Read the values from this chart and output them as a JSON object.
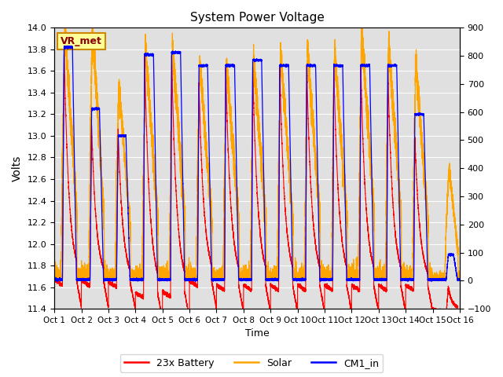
{
  "title": "System Power Voltage",
  "xlabel": "Time",
  "ylabel_left": "Volts",
  "ylim_left": [
    11.4,
    14.0
  ],
  "ylim_right": [
    -100,
    900
  ],
  "yticks_left": [
    11.4,
    11.6,
    11.8,
    12.0,
    12.2,
    12.4,
    12.6,
    12.8,
    13.0,
    13.2,
    13.4,
    13.6,
    13.8,
    14.0
  ],
  "yticks_right": [
    -100,
    0,
    100,
    200,
    300,
    400,
    500,
    600,
    700,
    800,
    900
  ],
  "xtick_labels": [
    "Oct 1",
    "Oct 2",
    "Oct 3",
    "Oct 4",
    "Oct 5",
    "Oct 6",
    "Oct 7",
    "Oct 8",
    "Oct 9",
    "Oct 10",
    "Oct 11",
    "Oct 12",
    "Oct 13",
    "Oct 14",
    "Oct 15",
    "Oct 16"
  ],
  "n_days": 15,
  "bg_color": "#e0e0e0",
  "legend_labels": [
    "23x Battery",
    "Solar",
    "CM1_in"
  ],
  "vr_met_label": "VR_met",
  "vr_met_bg": "#ffff99",
  "vr_met_border": "#cc8800",
  "figsize": [
    6.4,
    4.8
  ],
  "dpi": 100,
  "bat_peaks": [
    13.82,
    13.1,
    13.07,
    13.75,
    13.75,
    13.5,
    13.65,
    13.65,
    13.65,
    13.65,
    13.65,
    13.65,
    13.65,
    13.0,
    11.6
  ],
  "cm1_peaks": [
    13.82,
    13.25,
    13.0,
    13.75,
    13.77,
    13.65,
    13.65,
    13.7,
    13.65,
    13.65,
    13.65,
    13.65,
    13.65,
    13.2,
    11.9
  ],
  "sol_peaks": [
    900,
    900,
    700,
    830,
    830,
    780,
    780,
    790,
    820,
    820,
    820,
    900,
    850,
    780,
    400
  ],
  "bat_bases": [
    11.67,
    11.66,
    11.65,
    11.55,
    11.56,
    11.66,
    11.62,
    11.62,
    11.62,
    11.62,
    11.62,
    11.62,
    11.62,
    11.62,
    11.4
  ],
  "charge_starts": [
    0.3,
    0.32,
    0.3,
    0.3,
    0.3,
    0.3,
    0.3,
    0.3,
    0.3,
    0.3,
    0.3,
    0.3,
    0.3,
    0.3,
    0.5
  ],
  "charge_ends": [
    0.36,
    0.38,
    0.36,
    0.34,
    0.34,
    0.35,
    0.34,
    0.34,
    0.34,
    0.34,
    0.34,
    0.34,
    0.34,
    0.34,
    0.58
  ],
  "discharge_ends": [
    0.82,
    0.82,
    0.8,
    0.82,
    0.82,
    0.82,
    0.82,
    0.82,
    0.82,
    0.82,
    0.82,
    0.82,
    0.82,
    0.82,
    0.92
  ]
}
